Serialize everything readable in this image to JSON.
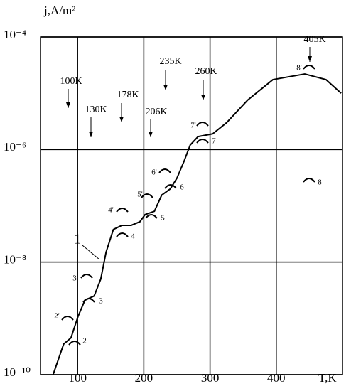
{
  "chart_data": {
    "type": "line",
    "y_label": "j,A/m²",
    "x_label": "T,K",
    "xlim": [
      44,
      500
    ],
    "xticks": [
      100,
      200,
      300,
      400
    ],
    "ylim": [
      1e-10,
      0.0001
    ],
    "log_y": true,
    "grid": true,
    "yticks": [
      {
        "value": 1e-10,
        "label": "10⁻¹⁰"
      },
      {
        "value": 1e-08,
        "label": "10⁻⁸"
      },
      {
        "value": 1e-06,
        "label": "10⁻⁶"
      },
      {
        "value": 0.0001,
        "label": "10⁻⁴"
      }
    ],
    "series": [
      {
        "name": "1",
        "color": "#000000",
        "x": [
          63,
          79,
          90,
          100.5,
          111,
          125,
          135,
          143,
          154,
          167,
          181,
          194,
          202,
          216,
          227,
          240,
          250,
          261,
          270,
          282,
          304,
          325,
          357,
          395,
          443,
          475,
          498
        ],
        "values": [
          1e-10,
          3.5e-10,
          4.5e-10,
          1.07e-09,
          2.1e-09,
          2.5e-09,
          5e-09,
          1.5e-08,
          3.8e-08,
          4.5e-08,
          4.5e-08,
          5.2e-08,
          7e-08,
          8e-08,
          1.55e-07,
          2e-07,
          3.1e-07,
          6.3e-07,
          1.2e-06,
          1.7e-06,
          1.9e-06,
          3e-06,
          7.6e-06,
          1.75e-05,
          2.2e-05,
          1.75e-05,
          1e-05
        ]
      }
    ],
    "temperature_labels": [
      "100K",
      "130K",
      "178K",
      "206K",
      "235K",
      "260K",
      "405K"
    ],
    "peak_labels": [
      "2'",
      "2",
      "3'",
      "3",
      "4'",
      "4",
      "5'",
      "5",
      "6'",
      "6",
      "7'",
      "7",
      "8'",
      "8"
    ]
  }
}
